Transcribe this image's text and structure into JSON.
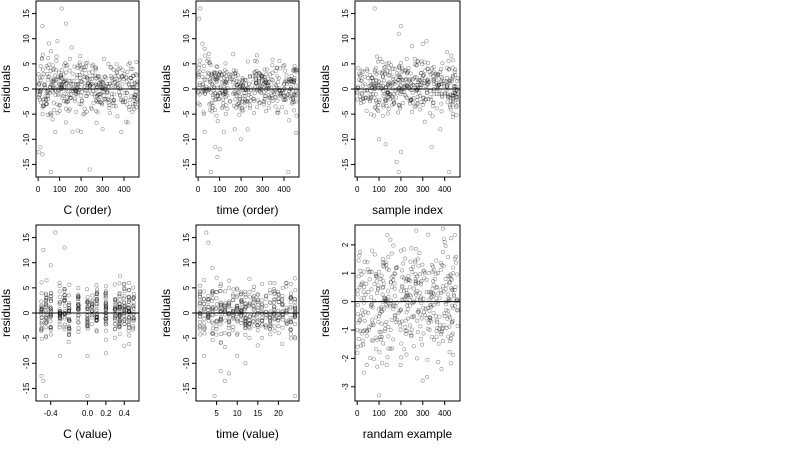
{
  "chart_data": [
    {
      "type": "scatter",
      "panel": "top-left",
      "xlabel": "C (order)",
      "ylabel": "residuals",
      "xlim": [
        -10,
        470
      ],
      "ylim": [
        -17.5,
        17.5
      ],
      "xticks": [
        0,
        100,
        200,
        300,
        400
      ],
      "xtick_labels": [
        "0",
        "100",
        "200",
        "300",
        "400"
      ],
      "yticks": [
        -15,
        -10,
        -5,
        0,
        5,
        10,
        15
      ],
      "ytick_labels": [
        "-15",
        "-10",
        "-5",
        "0",
        "5",
        "10",
        "15"
      ],
      "hline": 0,
      "n_points": 450,
      "points": {
        "body": {
          "x_range": [
            0,
            460
          ],
          "y_mean": 0.5,
          "y_sd": 2.6
        },
        "outliers": [
          [
            3,
            -12.5
          ],
          [
            10,
            -11.5
          ],
          [
            20,
            -13
          ],
          [
            60,
            -16.5
          ],
          [
            90,
            9.5
          ],
          [
            110,
            16
          ],
          [
            130,
            13
          ],
          [
            20,
            12.5
          ],
          [
            200,
            -8.5
          ],
          [
            240,
            -16
          ],
          [
            300,
            -8
          ],
          [
            410,
            -6.5
          ],
          [
            80,
            -8.5
          ],
          [
            160,
            -8.5
          ],
          [
            60,
            7.5
          ]
        ]
      }
    },
    {
      "type": "scatter",
      "panel": "top-middle",
      "xlabel": "time (order)",
      "ylabel": "residuals",
      "xlim": [
        -10,
        470
      ],
      "ylim": [
        -17.5,
        17.5
      ],
      "xticks": [
        0,
        100,
        200,
        300,
        400
      ],
      "xtick_labels": [
        "0",
        "100",
        "200",
        "300",
        "400"
      ],
      "yticks": [
        -15,
        -10,
        -5,
        0,
        5,
        10,
        15
      ],
      "ytick_labels": [
        "-15",
        "-10",
        "-5",
        "0",
        "5",
        "10",
        "15"
      ],
      "hline": 0,
      "n_points": 450,
      "points": {
        "body": {
          "x_range": [
            0,
            460
          ],
          "y_mean": 0.5,
          "y_sd": 2.6
        },
        "outliers": [
          [
            10,
            16
          ],
          [
            20,
            9
          ],
          [
            5,
            14
          ],
          [
            30,
            8
          ],
          [
            60,
            -16.5
          ],
          [
            80,
            -11.5
          ],
          [
            90,
            -13.5
          ],
          [
            100,
            -12
          ],
          [
            120,
            -8.5
          ],
          [
            170,
            -8
          ],
          [
            200,
            -10
          ],
          [
            420,
            -16.5
          ],
          [
            30,
            -8.5
          ],
          [
            50,
            7
          ]
        ]
      }
    },
    {
      "type": "scatter",
      "panel": "top-right",
      "xlabel": "sample index",
      "ylabel": "residuals",
      "xlim": [
        -10,
        470
      ],
      "ylim": [
        -17.5,
        17.5
      ],
      "xticks": [
        0,
        100,
        200,
        300,
        400
      ],
      "xtick_labels": [
        "0",
        "100",
        "200",
        "300",
        "400"
      ],
      "yticks": [
        -15,
        -10,
        -5,
        0,
        5,
        10,
        15
      ],
      "ytick_labels": [
        "-15",
        "-10",
        "-5",
        "0",
        "5",
        "10",
        "15"
      ],
      "hline": 0,
      "n_points": 450,
      "points": {
        "body": {
          "x_range": [
            0,
            460
          ],
          "y_mean": 0.5,
          "y_sd": 2.6
        },
        "outliers": [
          [
            80,
            16
          ],
          [
            200,
            12.5
          ],
          [
            190,
            11
          ],
          [
            250,
            8.5
          ],
          [
            300,
            9
          ],
          [
            190,
            -16.5
          ],
          [
            180,
            -14.5
          ],
          [
            200,
            -12.5
          ],
          [
            100,
            -10
          ],
          [
            130,
            -11
          ],
          [
            340,
            -11.5
          ],
          [
            420,
            -16.5
          ],
          [
            380,
            -8
          ]
        ]
      }
    },
    {
      "type": "scatter",
      "panel": "bottom-left",
      "xlabel": "C (value)",
      "ylabel": "residuals",
      "xlim": [
        -0.56,
        0.56
      ],
      "ylim": [
        -17.5,
        17.5
      ],
      "xticks": [
        -0.4,
        0.0,
        0.2,
        0.4
      ],
      "xtick_labels": [
        "-0.4",
        "0.0",
        "0.2",
        "0.4"
      ],
      "yticks": [
        -15,
        -10,
        -5,
        0,
        5,
        10,
        15
      ],
      "ytick_labels": [
        "-15",
        "-10",
        "-5",
        "0",
        "5",
        "10",
        "15"
      ],
      "hline": 0,
      "n_points": 450,
      "points": {
        "x_levels": [
          -0.5,
          -0.45,
          -0.4,
          -0.3,
          -0.25,
          -0.2,
          -0.1,
          0.0,
          0.05,
          0.1,
          0.2,
          0.3,
          0.35,
          0.4,
          0.45,
          0.5
        ],
        "body": {
          "y_mean": 0.5,
          "y_sd": 2.6
        },
        "outliers": [
          [
            -0.5,
            -12.5
          ],
          [
            -0.48,
            -13.5
          ],
          [
            -0.45,
            -16.5
          ],
          [
            -0.35,
            16
          ],
          [
            -0.25,
            13
          ],
          [
            -0.48,
            12.5
          ],
          [
            -0.4,
            9.5
          ],
          [
            0.0,
            -16.5
          ],
          [
            0.0,
            -8.5
          ],
          [
            -0.3,
            -8.5
          ],
          [
            0.2,
            -8
          ],
          [
            0.4,
            -6.5
          ]
        ]
      }
    },
    {
      "type": "scatter",
      "panel": "bottom-middle",
      "xlabel": "time (value)",
      "ylabel": "residuals",
      "xlim": [
        0,
        25
      ],
      "ylim": [
        -17.5,
        17.5
      ],
      "xticks": [
        5,
        10,
        15,
        20
      ],
      "xtick_labels": [
        "5",
        "10",
        "15",
        "20"
      ],
      "yticks": [
        -15,
        -10,
        -5,
        0,
        5,
        10,
        15
      ],
      "ytick_labels": [
        "-15",
        "-10",
        "-5",
        "0",
        "5",
        "10",
        "15"
      ],
      "hline": 0,
      "n_points": 450,
      "points": {
        "x_levels": [
          1,
          2,
          3,
          4,
          5,
          6,
          7,
          8,
          9,
          10,
          11,
          12,
          13,
          14,
          15,
          16,
          17,
          18,
          19,
          20,
          21,
          22,
          23,
          24
        ],
        "body": {
          "y_mean": 0.5,
          "y_sd": 2.6
        },
        "outliers": [
          [
            2.5,
            16
          ],
          [
            3,
            14
          ],
          [
            4,
            9
          ],
          [
            4.5,
            -16.5
          ],
          [
            6,
            -11.5
          ],
          [
            7,
            -13.5
          ],
          [
            8,
            -12
          ],
          [
            10,
            -8.5
          ],
          [
            12,
            -10
          ],
          [
            24,
            -16.5
          ],
          [
            2,
            -8.5
          ],
          [
            5,
            7
          ]
        ]
      }
    },
    {
      "type": "scatter",
      "panel": "bottom-right",
      "xlabel": "randam example",
      "ylabel": "residuals",
      "xlim": [
        -10,
        470
      ],
      "ylim": [
        -3.5,
        2.7
      ],
      "xticks": [
        0,
        100,
        200,
        300,
        400
      ],
      "xtick_labels": [
        "0",
        "100",
        "200",
        "300",
        "400"
      ],
      "yticks": [
        -3,
        -2,
        -1,
        0,
        1,
        2
      ],
      "ytick_labels": [
        "-3",
        "-2",
        "-1",
        "0",
        "1",
        "2"
      ],
      "hline": 0,
      "n_points": 450,
      "points": {
        "body": {
          "x_range": [
            0,
            460
          ],
          "y_mean": 0.0,
          "y_sd": 1.0
        },
        "outliers": [
          [
            270,
            2.5
          ],
          [
            100,
            -3.3
          ],
          [
            30,
            -2.5
          ],
          [
            400,
            2.1
          ]
        ]
      }
    }
  ]
}
